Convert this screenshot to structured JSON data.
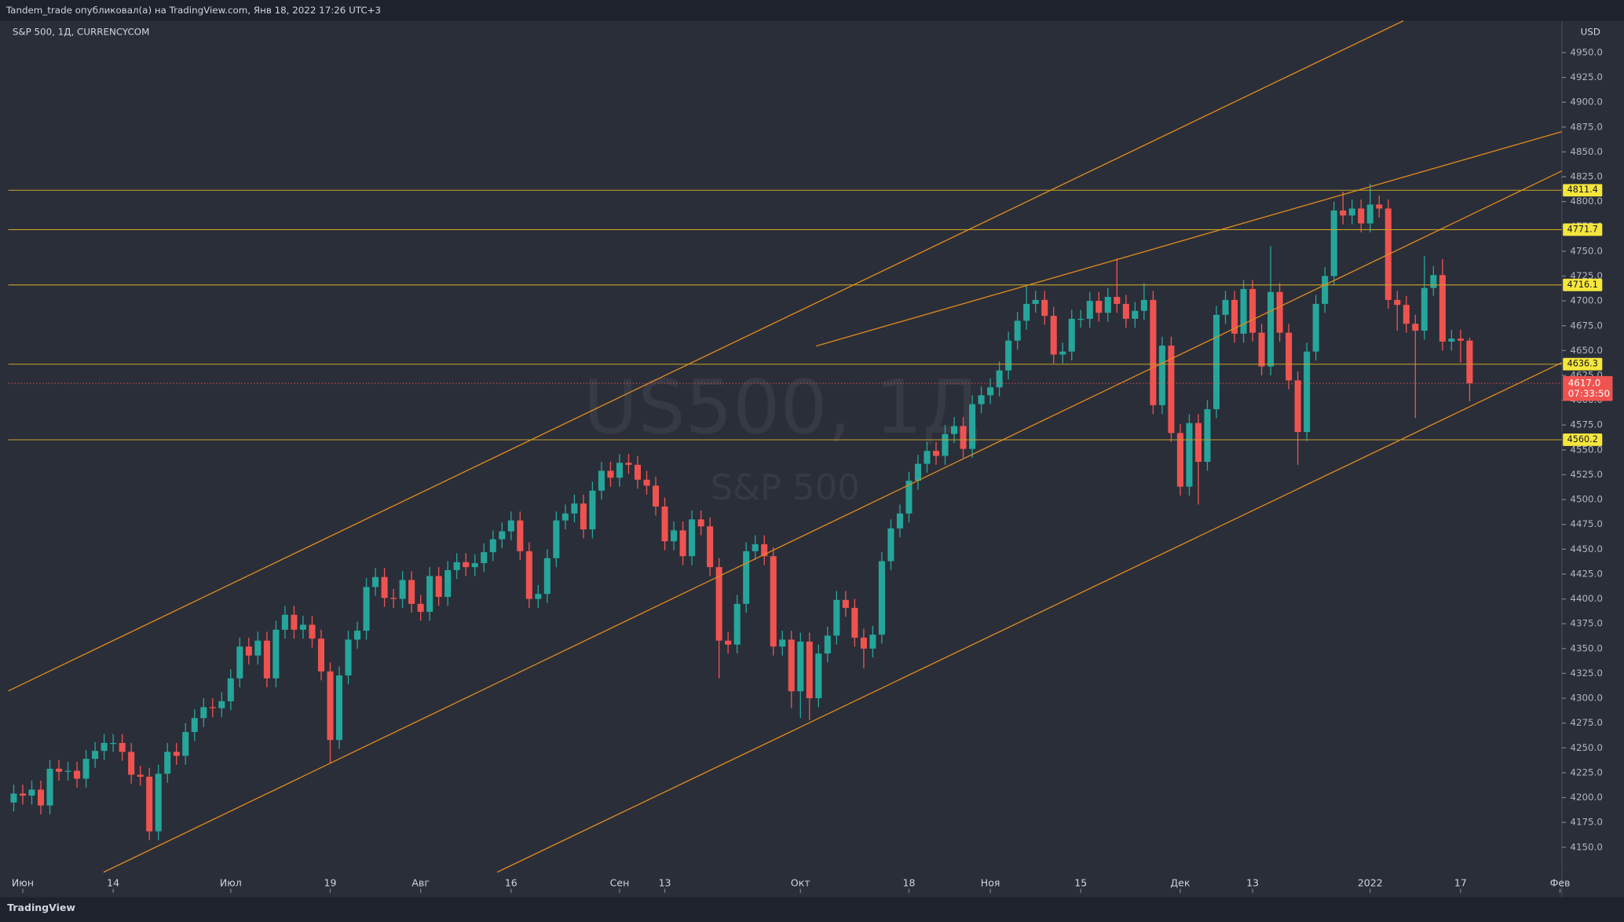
{
  "header": "Tandem_trade опубликовал(а) на TradingView.com, Янв 18, 2022 17:26 UTC+3",
  "branding": "TradingView",
  "chart_data": {
    "type": "candlestick",
    "title": "S&P 500, 1Д, CURRENCYCOM",
    "currency": "USD",
    "watermark_symbol": "US500, 1Д",
    "watermark_name": "S&P 500",
    "up_color": "#26a69a",
    "down_color": "#ef5350",
    "level_color": "#c9a227",
    "xlim": [
      -0.6,
      171.2
    ],
    "xticks": [
      {
        "value": 1,
        "label": "Июн"
      },
      {
        "value": 11,
        "label": "14"
      },
      {
        "value": 24,
        "label": "Июл"
      },
      {
        "value": 35,
        "label": "19"
      },
      {
        "value": 45,
        "label": "Авг"
      },
      {
        "value": 55,
        "label": "16"
      },
      {
        "value": 67,
        "label": "Сен"
      },
      {
        "value": 72,
        "label": "13"
      },
      {
        "value": 87,
        "label": "Окт"
      },
      {
        "value": 99,
        "label": "18"
      },
      {
        "value": 108,
        "label": "Ноя"
      },
      {
        "value": 118,
        "label": "15"
      },
      {
        "value": 129,
        "label": "Дек"
      },
      {
        "value": 137,
        "label": "13"
      },
      {
        "value": 150,
        "label": "2022"
      },
      {
        "value": 160,
        "label": "17"
      },
      {
        "value": 171,
        "label": "Фев"
      }
    ],
    "ylim": [
      4104,
      4982
    ],
    "yticks": [
      {
        "value": 4150,
        "label": "4150.0"
      },
      {
        "value": 4175,
        "label": "4175.0"
      },
      {
        "value": 4200,
        "label": "4200.0"
      },
      {
        "value": 4225,
        "label": "4225.0"
      },
      {
        "value": 4250,
        "label": "4250.0"
      },
      {
        "value": 4275,
        "label": "4275.0"
      },
      {
        "value": 4300,
        "label": "4300.0"
      },
      {
        "value": 4325,
        "label": "4325.0"
      },
      {
        "value": 4350,
        "label": "4350.0"
      },
      {
        "value": 4375,
        "label": "4375.0"
      },
      {
        "value": 4400,
        "label": "4400.0"
      },
      {
        "value": 4425,
        "label": "4425.0"
      },
      {
        "value": 4450,
        "label": "4450.0"
      },
      {
        "value": 4475,
        "label": "4475.0"
      },
      {
        "value": 4500,
        "label": "4500.0"
      },
      {
        "value": 4525,
        "label": "4525.0"
      },
      {
        "value": 4550,
        "label": "4550.0"
      },
      {
        "value": 4575,
        "label": "4575.0"
      },
      {
        "value": 4600,
        "label": "4600.0"
      },
      {
        "value": 4625,
        "label": "4625.0"
      },
      {
        "value": 4650,
        "label": "4650.0"
      },
      {
        "value": 4675,
        "label": "4675.0"
      },
      {
        "value": 4700,
        "label": "4700.0"
      },
      {
        "value": 4725,
        "label": "4725.0"
      },
      {
        "value": 4750,
        "label": "4750.0"
      },
      {
        "value": 4775,
        "label": "4775.0"
      },
      {
        "value": 4800,
        "label": "4800.0"
      },
      {
        "value": 4825,
        "label": "4825.0"
      },
      {
        "value": 4850,
        "label": "4850.0"
      },
      {
        "value": 4875,
        "label": "4875.0"
      },
      {
        "value": 4900,
        "label": "4900.0"
      },
      {
        "value": 4925,
        "label": "4925.0"
      },
      {
        "value": 4950,
        "label": "4950.0"
      }
    ],
    "levels": [
      4811.4,
      4771.7,
      4716.1,
      4636.3,
      4560.2
    ],
    "last_price": {
      "value": 4617,
      "label": "4617.0"
    },
    "countdown": "07:33:50",
    "ohlc": [
      [
        4195,
        4213,
        4186,
        4204
      ],
      [
        4204,
        4213,
        4193,
        4202
      ],
      [
        4202,
        4217,
        4193,
        4208
      ],
      [
        4208,
        4217,
        4183,
        4192
      ],
      [
        4192,
        4238,
        4183,
        4229
      ],
      [
        4229,
        4238,
        4217,
        4226
      ],
      [
        4226,
        4236,
        4217,
        4227
      ],
      [
        4227,
        4236,
        4210,
        4219
      ],
      [
        4219,
        4248,
        4210,
        4239
      ],
      [
        4239,
        4256,
        4230,
        4247
      ],
      [
        4247,
        4264,
        4238,
        4255
      ],
      [
        4255,
        4264,
        4246,
        4255
      ],
      [
        4255,
        4264,
        4237,
        4246
      ],
      [
        4246,
        4255,
        4214,
        4223
      ],
      [
        4223,
        4232,
        4212,
        4221
      ],
      [
        4221,
        4230,
        4157,
        4166
      ],
      [
        4166,
        4233,
        4157,
        4224
      ],
      [
        4224,
        4255,
        4215,
        4246
      ],
      [
        4246,
        4255,
        4233,
        4242
      ],
      [
        4242,
        4275,
        4233,
        4266
      ],
      [
        4266,
        4289,
        4257,
        4280
      ],
      [
        4280,
        4300,
        4271,
        4291
      ],
      [
        4291,
        4300,
        4281,
        4290
      ],
      [
        4290,
        4306,
        4281,
        4297
      ],
      [
        4297,
        4329,
        4288,
        4320
      ],
      [
        4320,
        4361,
        4311,
        4352
      ],
      [
        4352,
        4361,
        4334,
        4343
      ],
      [
        4343,
        4367,
        4334,
        4358
      ],
      [
        4358,
        4367,
        4311,
        4320
      ],
      [
        4320,
        4378,
        4311,
        4369
      ],
      [
        4369,
        4393,
        4360,
        4384
      ],
      [
        4384,
        4393,
        4360,
        4369
      ],
      [
        4369,
        4383,
        4360,
        4374
      ],
      [
        4374,
        4383,
        4351,
        4360
      ],
      [
        4360,
        4369,
        4318,
        4327
      ],
      [
        4327,
        4336,
        4235,
        4258
      ],
      [
        4258,
        4332,
        4249,
        4323
      ],
      [
        4323,
        4368,
        4314,
        4359
      ],
      [
        4359,
        4377,
        4350,
        4368
      ],
      [
        4368,
        4421,
        4359,
        4412
      ],
      [
        4412,
        4431,
        4403,
        4422
      ],
      [
        4422,
        4431,
        4392,
        4401
      ],
      [
        4401,
        4410,
        4391,
        4400
      ],
      [
        4400,
        4428,
        4391,
        4419
      ],
      [
        4419,
        4428,
        4386,
        4395
      ],
      [
        4395,
        4404,
        4378,
        4387
      ],
      [
        4387,
        4432,
        4378,
        4423
      ],
      [
        4423,
        4432,
        4393,
        4402
      ],
      [
        4402,
        4438,
        4393,
        4429
      ],
      [
        4429,
        4446,
        4420,
        4437
      ],
      [
        4437,
        4446,
        4423,
        4432
      ],
      [
        4432,
        4445,
        4423,
        4436
      ],
      [
        4436,
        4456,
        4427,
        4447
      ],
      [
        4447,
        4469,
        4438,
        4460
      ],
      [
        4460,
        4477,
        4451,
        4468
      ],
      [
        4468,
        4488,
        4459,
        4479
      ],
      [
        4479,
        4488,
        4439,
        4448
      ],
      [
        4448,
        4457,
        4391,
        4400
      ],
      [
        4400,
        4414,
        4391,
        4405
      ],
      [
        4405,
        4450,
        4396,
        4441
      ],
      [
        4441,
        4488,
        4432,
        4479
      ],
      [
        4479,
        4495,
        4470,
        4486
      ],
      [
        4486,
        4505,
        4477,
        4496
      ],
      [
        4496,
        4505,
        4461,
        4470
      ],
      [
        4470,
        4518,
        4461,
        4509
      ],
      [
        4509,
        4538,
        4500,
        4529
      ],
      [
        4529,
        4538,
        4513,
        4522
      ],
      [
        4522,
        4546,
        4513,
        4537
      ],
      [
        4537,
        4546,
        4526,
        4535
      ],
      [
        4535,
        4544,
        4511,
        4520
      ],
      [
        4520,
        4529,
        4505,
        4514
      ],
      [
        4514,
        4523,
        4484,
        4493
      ],
      [
        4493,
        4502,
        4449,
        4458
      ],
      [
        4458,
        4478,
        4449,
        4469
      ],
      [
        4469,
        4478,
        4434,
        4443
      ],
      [
        4443,
        4489,
        4434,
        4480
      ],
      [
        4480,
        4489,
        4464,
        4473
      ],
      [
        4473,
        4482,
        4423,
        4432
      ],
      [
        4432,
        4441,
        4320,
        4358
      ],
      [
        4358,
        4367,
        4345,
        4354
      ],
      [
        4354,
        4404,
        4345,
        4395
      ],
      [
        4395,
        4457,
        4386,
        4448
      ],
      [
        4448,
        4464,
        4439,
        4455
      ],
      [
        4455,
        4464,
        4434,
        4443
      ],
      [
        4443,
        4452,
        4343,
        4352
      ],
      [
        4352,
        4368,
        4343,
        4359
      ],
      [
        4359,
        4368,
        4290,
        4307
      ],
      [
        4307,
        4366,
        4280,
        4357
      ],
      [
        4357,
        4366,
        4278,
        4300
      ],
      [
        4300,
        4354,
        4291,
        4345
      ],
      [
        4345,
        4372,
        4336,
        4363
      ],
      [
        4363,
        4408,
        4354,
        4399
      ],
      [
        4399,
        4408,
        4382,
        4391
      ],
      [
        4391,
        4400,
        4352,
        4361
      ],
      [
        4361,
        4370,
        4330,
        4350
      ],
      [
        4350,
        4373,
        4341,
        4364
      ],
      [
        4364,
        4447,
        4355,
        4438
      ],
      [
        4438,
        4480,
        4429,
        4471
      ],
      [
        4471,
        4495,
        4462,
        4486
      ],
      [
        4486,
        4528,
        4477,
        4519
      ],
      [
        4519,
        4545,
        4510,
        4536
      ],
      [
        4536,
        4558,
        4527,
        4549
      ],
      [
        4549,
        4558,
        4535,
        4544
      ],
      [
        4544,
        4575,
        4535,
        4566
      ],
      [
        4566,
        4583,
        4557,
        4574
      ],
      [
        4574,
        4583,
        4542,
        4551
      ],
      [
        4551,
        4605,
        4542,
        4596
      ],
      [
        4596,
        4614,
        4587,
        4605
      ],
      [
        4605,
        4622,
        4596,
        4613
      ],
      [
        4613,
        4639,
        4604,
        4630
      ],
      [
        4630,
        4669,
        4621,
        4660
      ],
      [
        4660,
        4689,
        4651,
        4680
      ],
      [
        4680,
        4715,
        4671,
        4697
      ],
      [
        4697,
        4710,
        4688,
        4701
      ],
      [
        4701,
        4710,
        4676,
        4685
      ],
      [
        4685,
        4694,
        4637,
        4646
      ],
      [
        4646,
        4658,
        4637,
        4649
      ],
      [
        4649,
        4691,
        4640,
        4682
      ],
      [
        4682,
        4691,
        4673,
        4682
      ],
      [
        4682,
        4709,
        4673,
        4700
      ],
      [
        4700,
        4709,
        4679,
        4688
      ],
      [
        4688,
        4713,
        4679,
        4704
      ],
      [
        4704,
        4743,
        4688,
        4697
      ],
      [
        4697,
        4706,
        4673,
        4682
      ],
      [
        4682,
        4699,
        4673,
        4690
      ],
      [
        4690,
        4718,
        4681,
        4701
      ],
      [
        4701,
        4710,
        4586,
        4595
      ],
      [
        4595,
        4664,
        4586,
        4655
      ],
      [
        4655,
        4664,
        4558,
        4567
      ],
      [
        4567,
        4576,
        4504,
        4513
      ],
      [
        4513,
        4586,
        4504,
        4577
      ],
      [
        4577,
        4586,
        4495,
        4538
      ],
      [
        4538,
        4600,
        4529,
        4591
      ],
      [
        4591,
        4695,
        4582,
        4686
      ],
      [
        4686,
        4710,
        4677,
        4701
      ],
      [
        4701,
        4710,
        4658,
        4667
      ],
      [
        4667,
        4721,
        4658,
        4712
      ],
      [
        4712,
        4721,
        4659,
        4668
      ],
      [
        4668,
        4677,
        4625,
        4634
      ],
      [
        4634,
        4755,
        4625,
        4709
      ],
      [
        4709,
        4718,
        4659,
        4668
      ],
      [
        4668,
        4677,
        4611,
        4620
      ],
      [
        4620,
        4629,
        4535,
        4568
      ],
      [
        4568,
        4658,
        4559,
        4649
      ],
      [
        4649,
        4706,
        4640,
        4697
      ],
      [
        4697,
        4734,
        4688,
        4725
      ],
      [
        4725,
        4800,
        4716,
        4791
      ],
      [
        4791,
        4810,
        4777,
        4786
      ],
      [
        4786,
        4802,
        4777,
        4793
      ],
      [
        4793,
        4802,
        4769,
        4778
      ],
      [
        4778,
        4818,
        4769,
        4797
      ],
      [
        4797,
        4806,
        4784,
        4793
      ],
      [
        4793,
        4802,
        4692,
        4701
      ],
      [
        4701,
        4710,
        4670,
        4696
      ],
      [
        4696,
        4705,
        4668,
        4677
      ],
      [
        4677,
        4686,
        4582,
        4670
      ],
      [
        4670,
        4745,
        4661,
        4713
      ],
      [
        4713,
        4735,
        4705,
        4726
      ],
      [
        4726,
        4742,
        4650,
        4659
      ],
      [
        4659,
        4671,
        4650,
        4662
      ],
      [
        4662,
        4671,
        4638,
        4660
      ],
      [
        4660,
        4663,
        4599,
        4617
      ]
    ]
  }
}
